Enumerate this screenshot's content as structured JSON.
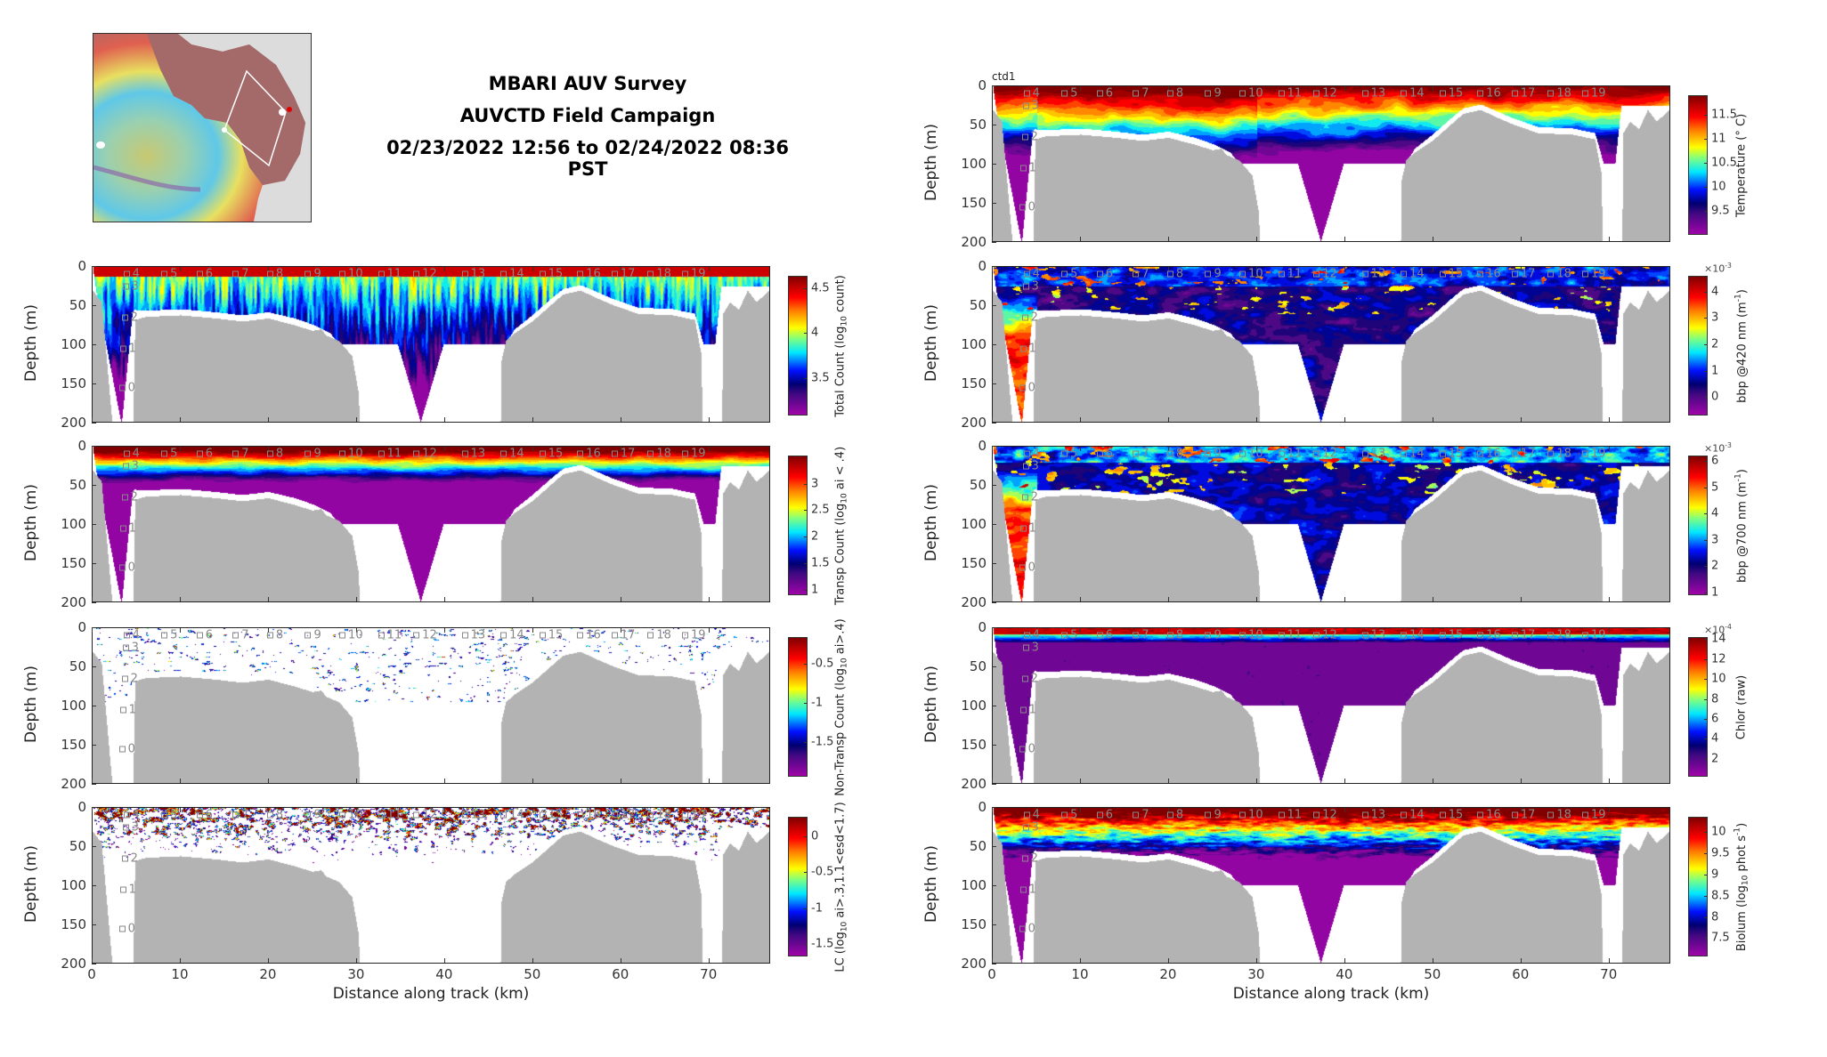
{
  "header": {
    "title_line1": "MBARI AUV Survey",
    "title_line2": "AUVCTD Field Campaign",
    "title_line3": "02/23/2022 12:56 to 02/24/2022 08:36 PST"
  },
  "colors": {
    "seafloor": "#b3b3b3",
    "marker": "#888888",
    "track": "#ffffff"
  },
  "profiles": [
    {
      "label": "0",
      "km": 3.4,
      "depth": 150
    },
    {
      "label": "1",
      "km": 3.5,
      "depth": 100
    },
    {
      "label": "2",
      "km": 3.7,
      "depth": 60
    },
    {
      "label": "3",
      "km": 3.8,
      "depth": 20
    },
    {
      "label": "4",
      "km": 3.9,
      "depth": 4
    },
    {
      "label": "5",
      "km": 8.2,
      "depth": 4
    },
    {
      "label": "6",
      "km": 12.2,
      "depth": 4
    },
    {
      "label": "7",
      "km": 16.3,
      "depth": 4
    },
    {
      "label": "8",
      "km": 20.2,
      "depth": 4
    },
    {
      "label": "9",
      "km": 24.5,
      "depth": 4
    },
    {
      "label": "10",
      "km": 28.4,
      "depth": 4
    },
    {
      "label": "11",
      "km": 32.8,
      "depth": 4
    },
    {
      "label": "12",
      "km": 36.8,
      "depth": 4
    },
    {
      "label": "13",
      "km": 42.3,
      "depth": 4
    },
    {
      "label": "14",
      "km": 46.7,
      "depth": 4
    },
    {
      "label": "15",
      "km": 51.1,
      "depth": 4
    },
    {
      "label": "16",
      "km": 55.4,
      "depth": 4
    },
    {
      "label": "17",
      "km": 59.3,
      "depth": 4
    },
    {
      "label": "18",
      "km": 63.4,
      "depth": 4
    },
    {
      "label": "19",
      "km": 67.3,
      "depth": 4
    }
  ],
  "bathymetry": [
    [
      0,
      30
    ],
    [
      1,
      45
    ],
    [
      2.2,
      200
    ],
    [
      4.6,
      200
    ],
    [
      4.8,
      68
    ],
    [
      6,
      64
    ],
    [
      10,
      62
    ],
    [
      14,
      66
    ],
    [
      17,
      70
    ],
    [
      20,
      66
    ],
    [
      23,
      75
    ],
    [
      25,
      82
    ],
    [
      26,
      80
    ],
    [
      26.5,
      88
    ],
    [
      28,
      95
    ],
    [
      29.5,
      115
    ],
    [
      30.2,
      160
    ],
    [
      30.4,
      200
    ],
    [
      46.4,
      200
    ],
    [
      46.5,
      120
    ],
    [
      47,
      95
    ],
    [
      48,
      85
    ],
    [
      50,
      70
    ],
    [
      52,
      50
    ],
    [
      53.5,
      35
    ],
    [
      55.5,
      30
    ],
    [
      57,
      38
    ],
    [
      59,
      48
    ],
    [
      62,
      60
    ],
    [
      66,
      62
    ],
    [
      68.5,
      68
    ],
    [
      69.2,
      110
    ],
    [
      69.4,
      200
    ],
    [
      71.6,
      200
    ],
    [
      71.7,
      60
    ],
    [
      72.5,
      45
    ],
    [
      73.5,
      55
    ],
    [
      74.5,
      30
    ],
    [
      75.5,
      45
    ],
    [
      77,
      30
    ]
  ],
  "data_bottom": [
    [
      0,
      0
    ],
    [
      0.5,
      40
    ],
    [
      3.2,
      200
    ],
    [
      3.3,
      200
    ],
    [
      4.5,
      60
    ],
    [
      4.7,
      55
    ],
    [
      6,
      56
    ],
    [
      10,
      54
    ],
    [
      14,
      58
    ],
    [
      17,
      62
    ],
    [
      20,
      58
    ],
    [
      23,
      66
    ],
    [
      25,
      74
    ],
    [
      27,
      85
    ],
    [
      28,
      100
    ],
    [
      34.7,
      100
    ],
    [
      37.3,
      200
    ],
    [
      39.9,
      100
    ],
    [
      46.9,
      100
    ],
    [
      48,
      80
    ],
    [
      50,
      62
    ],
    [
      52,
      42
    ],
    [
      53.5,
      28
    ],
    [
      55.5,
      23
    ],
    [
      57,
      30
    ],
    [
      59,
      40
    ],
    [
      62,
      52
    ],
    [
      66,
      54
    ],
    [
      68.5,
      60
    ],
    [
      69.5,
      100
    ],
    [
      70.8,
      100
    ],
    [
      71.5,
      25
    ],
    [
      77,
      25
    ]
  ],
  "chart_data": [
    {
      "id": "temperature",
      "type": "heatmap",
      "column": "right",
      "row": 0,
      "tag": "ctd1",
      "ylabel": "Depth (m)",
      "xlabel": "",
      "xlim": [
        0,
        77
      ],
      "ylim": [
        200,
        0
      ],
      "xticks": [
        0,
        10,
        20,
        30,
        40,
        50,
        60,
        70
      ],
      "yticks": [
        0,
        50,
        100,
        150,
        200
      ],
      "colorbar": {
        "label": [
          {
            "t": "Temperature (° C)",
            "s": ""
          }
        ],
        "range": [
          9.0,
          11.9
        ],
        "ticks": [
          "9.5",
          "10",
          "10.5",
          "11",
          "11.5"
        ],
        "exponent": null
      }
    },
    {
      "id": "bbp420",
      "type": "heatmap",
      "column": "right",
      "row": 1,
      "ylabel": "Depth (m)",
      "xlabel": "",
      "xlim": [
        0,
        77
      ],
      "ylim": [
        200,
        0
      ],
      "xticks": [
        0,
        10,
        20,
        30,
        40,
        50,
        60,
        70
      ],
      "yticks": [
        0,
        50,
        100,
        150,
        200
      ],
      "colorbar": {
        "label": [
          {
            "t": "bbp @420 nm (m",
            "s": ""
          },
          {
            "t": "-1",
            "s": "sup"
          },
          {
            "t": ")",
            "s": ""
          }
        ],
        "range": [
          -0.7,
          4.6
        ],
        "ticks": [
          "0",
          "1",
          "2",
          "3",
          "4"
        ],
        "exponent": {
          "base": "×10",
          "power": "-3"
        }
      }
    },
    {
      "id": "bbp700",
      "type": "heatmap",
      "column": "right",
      "row": 2,
      "ylabel": "Depth (m)",
      "xlabel": "",
      "xlim": [
        0,
        77
      ],
      "ylim": [
        200,
        0
      ],
      "xticks": [
        0,
        10,
        20,
        30,
        40,
        50,
        60,
        70
      ],
      "yticks": [
        0,
        50,
        100,
        150,
        200
      ],
      "colorbar": {
        "label": [
          {
            "t": "bbp @700 nm (m",
            "s": ""
          },
          {
            "t": "-1",
            "s": "sup"
          },
          {
            "t": ")",
            "s": ""
          }
        ],
        "range": [
          0.9,
          6.2
        ],
        "ticks": [
          "1",
          "2",
          "3",
          "4",
          "5",
          "6"
        ],
        "exponent": {
          "base": "×10",
          "power": "-3"
        }
      }
    },
    {
      "id": "chlor",
      "type": "heatmap",
      "column": "right",
      "row": 3,
      "ylabel": "Depth (m)",
      "xlabel": "",
      "xlim": [
        0,
        77
      ],
      "ylim": [
        200,
        0
      ],
      "xticks": [
        0,
        10,
        20,
        30,
        40,
        50,
        60,
        70
      ],
      "yticks": [
        0,
        50,
        100,
        150,
        200
      ],
      "colorbar": {
        "label": [
          {
            "t": "Chlor (raw)",
            "s": ""
          }
        ],
        "range": [
          0.2,
          14.2
        ],
        "ticks": [
          "2",
          "4",
          "6",
          "8",
          "10",
          "12",
          "14"
        ],
        "exponent": {
          "base": "×10",
          "power": "-4"
        }
      }
    },
    {
      "id": "biolum",
      "type": "heatmap",
      "column": "right",
      "row": 4,
      "ylabel": "Depth (m)",
      "xlabel": "Distance along track (km)",
      "xlim": [
        0,
        77
      ],
      "ylim": [
        200,
        0
      ],
      "xticks": [
        0,
        10,
        20,
        30,
        40,
        50,
        60,
        70
      ],
      "yticks": [
        0,
        50,
        100,
        150,
        200
      ],
      "colorbar": {
        "label": [
          {
            "t": "Biolum (log",
            "s": ""
          },
          {
            "t": "10",
            "s": "sub"
          },
          {
            "t": " phot s",
            "s": ""
          },
          {
            "t": "-1",
            "s": "sup"
          },
          {
            "t": ")",
            "s": ""
          }
        ],
        "range": [
          7.07,
          10.36
        ],
        "ticks": [
          "7.5",
          "8",
          "8.5",
          "9",
          "9.5",
          "10"
        ],
        "exponent": null
      }
    },
    {
      "id": "total_count",
      "type": "heatmap",
      "column": "left",
      "row": 1,
      "ylabel": "Depth (m)",
      "xlabel": "",
      "xlim": [
        0,
        77
      ],
      "ylim": [
        200,
        0
      ],
      "xticks": [
        0,
        10,
        20,
        30,
        40,
        50,
        60,
        70
      ],
      "yticks": [
        0,
        50,
        100,
        150,
        200
      ],
      "colorbar": {
        "label": [
          {
            "t": "Total Count (log",
            "s": ""
          },
          {
            "t": "10",
            "s": "sub"
          },
          {
            "t": " count)",
            "s": ""
          }
        ],
        "range": [
          3.08,
          4.64
        ],
        "ticks": [
          "3.5",
          "4",
          "4.5"
        ],
        "exponent": null
      }
    },
    {
      "id": "transp_count",
      "type": "heatmap",
      "column": "left",
      "row": 2,
      "ylabel": "Depth (m)",
      "xlabel": "",
      "xlim": [
        0,
        77
      ],
      "ylim": [
        200,
        0
      ],
      "xticks": [
        0,
        10,
        20,
        30,
        40,
        50,
        60,
        70
      ],
      "yticks": [
        0,
        50,
        100,
        150,
        200
      ],
      "colorbar": {
        "label": [
          {
            "t": "Transp Count (log",
            "s": ""
          },
          {
            "t": "10",
            "s": "sub"
          },
          {
            "t": " ai < .4)",
            "s": ""
          }
        ],
        "range": [
          0.9,
          3.53
        ],
        "ticks": [
          "1",
          "1.5",
          "2",
          "2.5",
          "3"
        ],
        "exponent": null
      }
    },
    {
      "id": "nontransp_count",
      "type": "heatmap",
      "column": "left",
      "row": 3,
      "ylabel": "Depth (m)",
      "xlabel": "",
      "xlim": [
        0,
        77
      ],
      "ylim": [
        200,
        0
      ],
      "xticks": [
        0,
        10,
        20,
        30,
        40,
        50,
        60,
        70
      ],
      "yticks": [
        0,
        50,
        100,
        150,
        200
      ],
      "colorbar": {
        "label": [
          {
            "t": "Non-Transp Count (log",
            "s": ""
          },
          {
            "t": "10",
            "s": "sub"
          },
          {
            "t": " ai>.4)",
            "s": ""
          }
        ],
        "range": [
          -1.94,
          -0.16
        ],
        "ticks": [
          "-1.5",
          "-1",
          "-0.5"
        ],
        "exponent": null
      }
    },
    {
      "id": "lc",
      "type": "heatmap",
      "column": "left",
      "row": 4,
      "ylabel": "Depth (m)",
      "xlabel": "Distance along track (km)",
      "xlim": [
        0,
        77
      ],
      "ylim": [
        200,
        0
      ],
      "xticks": [
        0,
        10,
        20,
        30,
        40,
        50,
        60,
        70
      ],
      "yticks": [
        0,
        50,
        100,
        150,
        200
      ],
      "colorbar": {
        "label": [
          {
            "t": "LC (log",
            "s": ""
          },
          {
            "t": "10",
            "s": "sub"
          },
          {
            "t": " ai>.3,1.1<esd<1.7)",
            "s": ""
          }
        ],
        "range": [
          -1.67,
          0.27
        ],
        "ticks": [
          "-1.5",
          "-1",
          "-0.5",
          "0"
        ],
        "exponent": null
      }
    }
  ]
}
